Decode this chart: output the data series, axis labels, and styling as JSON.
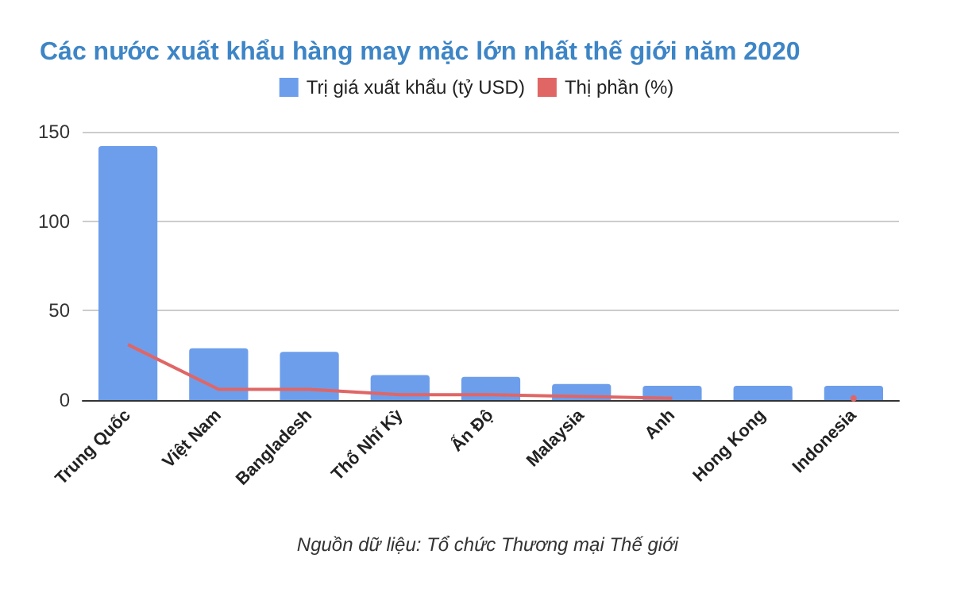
{
  "chart_data": {
    "type": "bar",
    "title": "Các nước xuất khẩu hàng may mặc lớn nhất thế giới năm 2020",
    "categories": [
      "Trung Quốc",
      "Việt Nam",
      "Bangladesh",
      "Thổ Nhĩ Kỳ",
      "Ấn Độ",
      "Malaysia",
      "Anh",
      "Hong Kong",
      "Indonesia"
    ],
    "series": [
      {
        "name": "Trị giá xuất khẩu (tỷ USD)",
        "color": "#6d9eeb",
        "values": [
          142,
          29,
          27,
          14,
          13,
          9,
          8,
          8,
          8
        ]
      },
      {
        "name": "Thị phần (%)",
        "type": "line",
        "color": "#e06666",
        "values": [
          31,
          6,
          6,
          3,
          3,
          2,
          1,
          null,
          1
        ]
      }
    ],
    "ylim": [
      0,
      150
    ],
    "yticks": [
      0,
      50,
      100,
      150
    ],
    "grid": "y",
    "legend": "top",
    "annotations": [
      "Nguồn dữ liệu: Tổ chức Thương mại Thế giới"
    ]
  }
}
